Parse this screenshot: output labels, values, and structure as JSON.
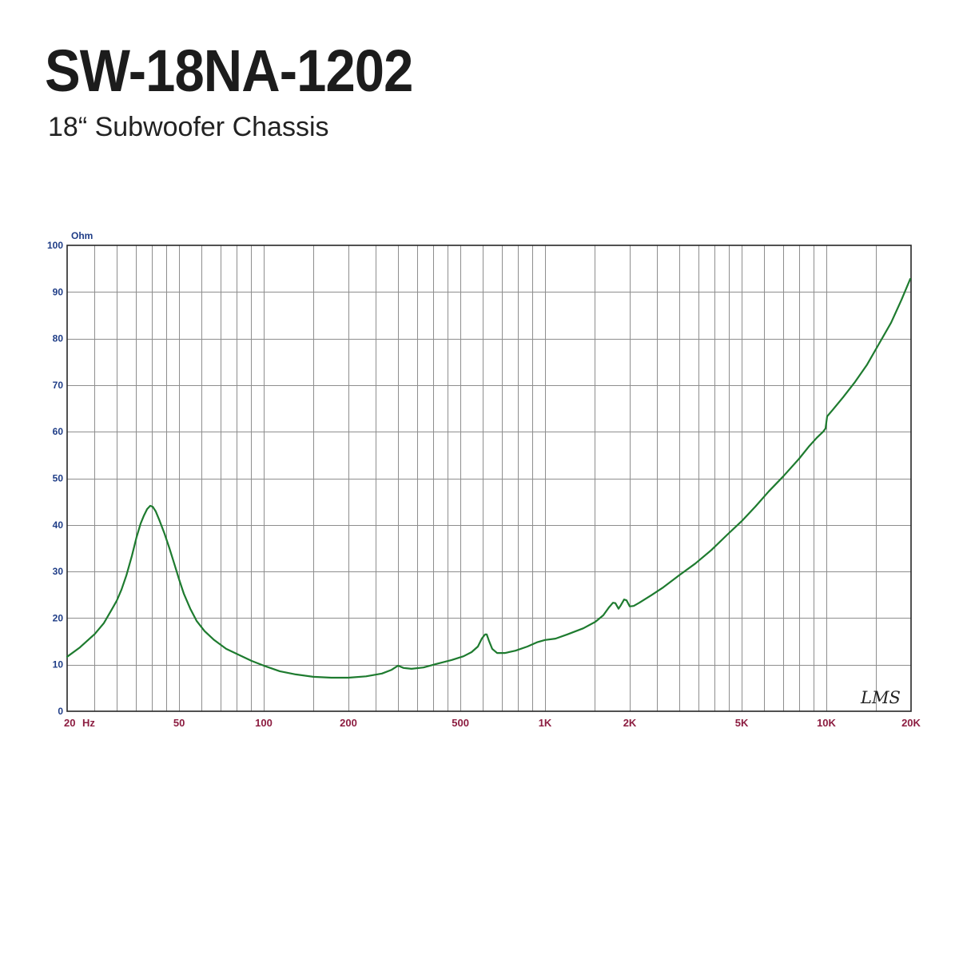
{
  "header": {
    "title": "SW-18NA-1202",
    "subtitle": "18“ Subwoofer Chassis"
  },
  "colors": {
    "title": "#1c1c1c",
    "curve": "#1e7b2f",
    "y_axis_text": "#1f3d87",
    "x_axis_text": "#8c1c40",
    "grid": "#8e8e8e",
    "frame": "#262626"
  },
  "chart_data": {
    "type": "line",
    "xlabel": "Hz",
    "ylabel": "Ohm",
    "x_scale": "log",
    "xlim": [
      20,
      20000
    ],
    "ylim": [
      0,
      100
    ],
    "grid": true,
    "x_ticks": [
      {
        "value": 20,
        "label": "20"
      },
      {
        "value": 50,
        "label": "50"
      },
      {
        "value": 100,
        "label": "100"
      },
      {
        "value": 200,
        "label": "200"
      },
      {
        "value": 500,
        "label": "500"
      },
      {
        "value": 1000,
        "label": "1K"
      },
      {
        "value": 2000,
        "label": "2K"
      },
      {
        "value": 5000,
        "label": "5K"
      },
      {
        "value": 10000,
        "label": "10K"
      },
      {
        "value": 20000,
        "label": "20K"
      }
    ],
    "y_ticks": [
      0,
      10,
      20,
      30,
      40,
      50,
      60,
      70,
      80,
      90,
      100
    ],
    "series": [
      {
        "color": "#1e7b2f",
        "x": [
          20,
          22.2,
          25.1,
          27.0,
          28.8,
          30.0,
          31.2,
          32.5,
          34.0,
          35.3,
          36.5,
          37.5,
          38.5,
          39.5,
          40.3,
          41.3,
          42.7,
          44.4,
          46.2,
          48.1,
          50.0,
          52.0,
          54.8,
          57.7,
          61.6,
          66.6,
          73.5,
          82.2,
          90.6,
          100,
          114,
          130,
          150,
          174,
          200,
          231,
          263,
          285,
          300,
          314,
          335,
          370,
          408,
          465,
          513,
          548,
          577,
          596,
          612,
          620,
          632,
          649,
          675,
          721,
          785,
          866,
          936,
          1000,
          1089,
          1201,
          1368,
          1509,
          1611,
          1687,
          1743,
          1778,
          1825,
          1861,
          1910,
          1948,
          2000,
          2066,
          2163,
          2386,
          2632,
          3000,
          3420,
          3899,
          4444,
          5000,
          5584,
          6244,
          7024,
          8000,
          8655,
          9240,
          9737,
          9932,
          10063,
          10534,
          11470,
          12652,
          13958,
          15398,
          16985,
          18493,
          19869
        ],
        "y": [
          11.7,
          13.7,
          16.6,
          18.9,
          21.8,
          23.7,
          26.1,
          29.2,
          33.4,
          37.4,
          40.3,
          42.0,
          43.4,
          44.1,
          43.9,
          42.9,
          40.8,
          38.1,
          35.0,
          31.6,
          28.3,
          25.2,
          22.0,
          19.4,
          17.2,
          15.3,
          13.4,
          12.0,
          10.8,
          9.8,
          8.6,
          7.9,
          7.4,
          7.2,
          7.2,
          7.5,
          8.1,
          8.9,
          9.8,
          9.3,
          9.1,
          9.4,
          10.1,
          11.0,
          11.8,
          12.7,
          13.9,
          15.6,
          16.5,
          16.5,
          15.1,
          13.4,
          12.5,
          12.5,
          13.0,
          13.9,
          14.8,
          15.3,
          15.6,
          16.5,
          17.8,
          19.2,
          20.6,
          22.3,
          23.3,
          23.2,
          22.0,
          22.8,
          24.0,
          23.8,
          22.5,
          22.6,
          23.3,
          24.9,
          26.6,
          29.2,
          31.7,
          34.6,
          37.9,
          40.8,
          43.9,
          47.2,
          50.4,
          54.2,
          56.8,
          58.7,
          60.0,
          60.7,
          63.3,
          64.7,
          67.4,
          70.7,
          74.4,
          78.9,
          83.4,
          88.3,
          92.8
        ]
      }
    ],
    "watermark": "LMS"
  }
}
